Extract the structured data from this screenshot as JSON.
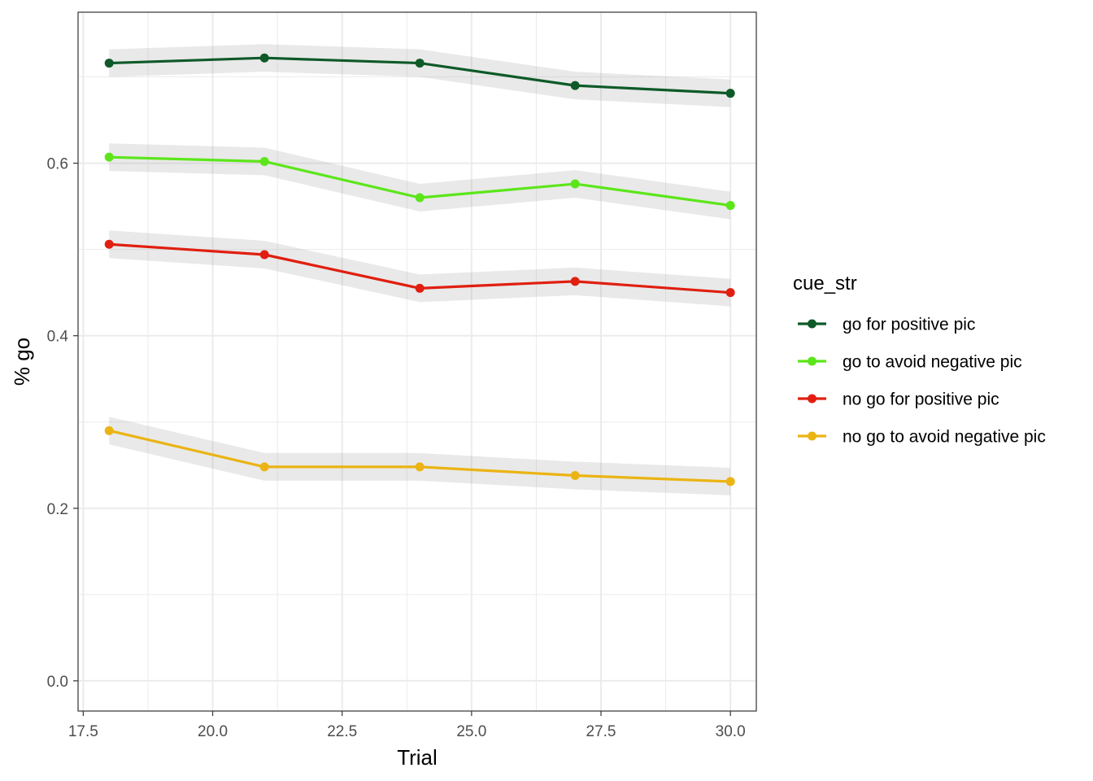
{
  "chart_data": {
    "type": "line",
    "xlabel": "Trial",
    "ylabel": "% go",
    "xlim": [
      17.4,
      30.5
    ],
    "ylim": [
      -0.035,
      0.775
    ],
    "x_ticks": [
      17.5,
      20.0,
      22.5,
      25.0,
      27.5,
      30.0
    ],
    "x_tick_labels": [
      "17.5",
      "20.0",
      "22.5",
      "25.0",
      "27.5",
      "30.0"
    ],
    "y_ticks": [
      0.0,
      0.2,
      0.4,
      0.6
    ],
    "y_tick_labels": [
      "0.0",
      "0.2",
      "0.4",
      "0.6"
    ],
    "grid": true,
    "legend": {
      "title": "cue_str",
      "placement": "right"
    },
    "x": [
      18,
      21,
      24,
      27,
      30
    ],
    "series": [
      {
        "name": "go for positive pic",
        "color": "#0e5a28",
        "values": [
          0.716,
          0.722,
          0.716,
          0.69,
          0.681
        ],
        "band": 0.016
      },
      {
        "name": "go to avoid negative pic",
        "color": "#5ce61a",
        "values": [
          0.607,
          0.602,
          0.56,
          0.576,
          0.551
        ],
        "band": 0.016
      },
      {
        "name": "no go for positive pic",
        "color": "#e01f10",
        "values": [
          0.506,
          0.494,
          0.455,
          0.463,
          0.45
        ],
        "band": 0.016
      },
      {
        "name": "no go to avoid negative pic",
        "color": "#ebb414",
        "values": [
          0.29,
          0.248,
          0.248,
          0.238,
          0.231
        ],
        "band": 0.016
      }
    ]
  }
}
